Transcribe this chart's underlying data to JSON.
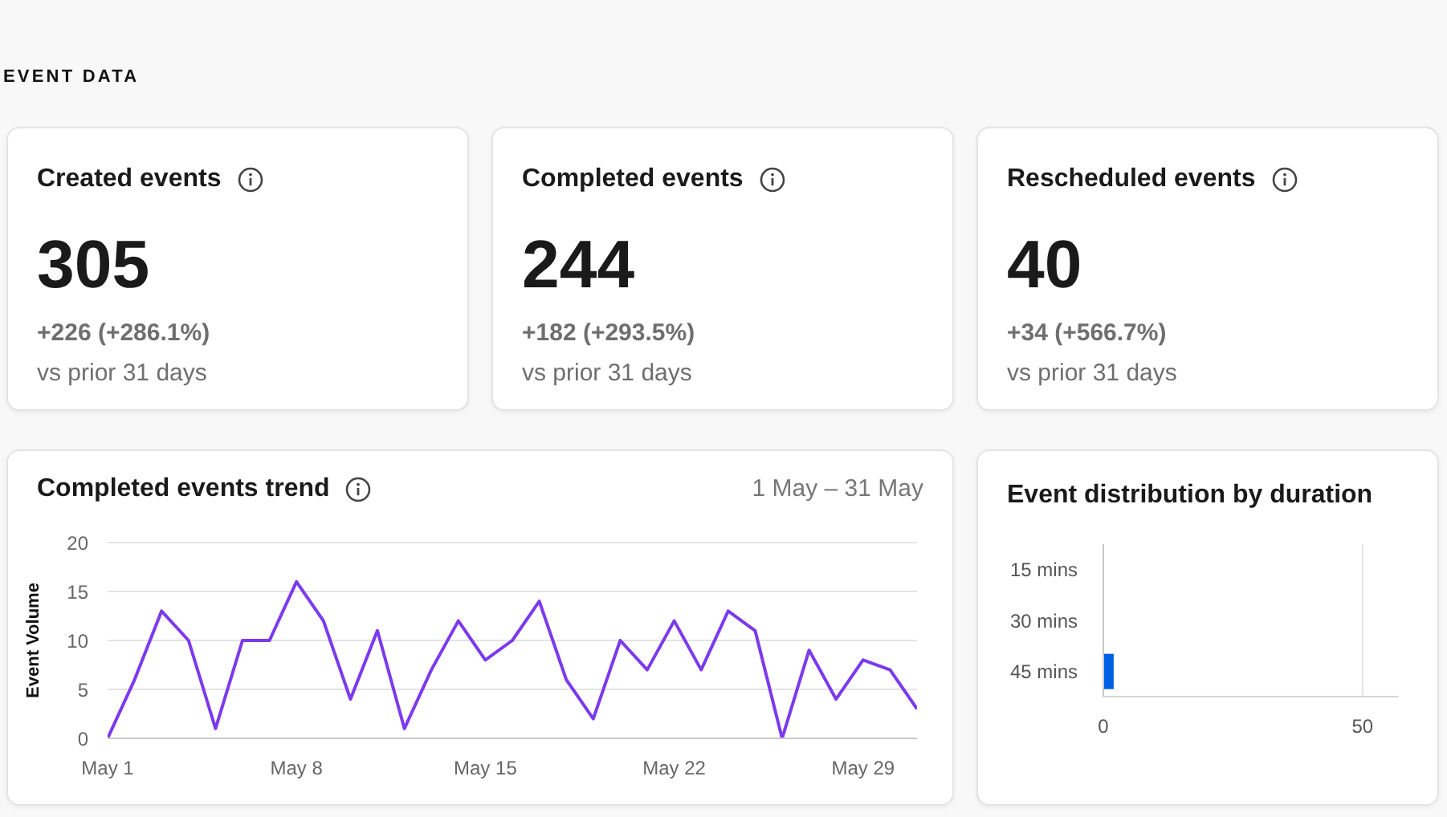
{
  "chart_data": [
    {
      "type": "other",
      "title": "EVENT DATA"
    },
    {
      "type": "other",
      "title": "Created events",
      "annotations": [
        "305",
        "+226 (+286.1%)",
        "vs prior 31 days"
      ]
    },
    {
      "type": "other",
      "title": "Completed events",
      "annotations": [
        "244",
        "+182 (+293.5%)",
        "vs prior 31 days"
      ]
    },
    {
      "type": "other",
      "title": "Rescheduled events",
      "annotations": [
        "40",
        "+34 (+566.7%)",
        "vs prior 31 days"
      ]
    },
    {
      "type": "line",
      "title": "Completed events trend",
      "subtitle": "1 May – 31 May",
      "ylabel": "Event Volume",
      "x": [
        "--05-01",
        "--05-02",
        "--05-03",
        "--05-04",
        "--05-05",
        "--05-06",
        "--05-07",
        "--05-08",
        "--05-09",
        "--05-10",
        "--05-11",
        "--05-12",
        "--05-13",
        "--05-14",
        "--05-15",
        "--05-16",
        "--05-17",
        "--05-18",
        "--05-19",
        "--05-20",
        "--05-21",
        "--05-22",
        "--05-23",
        "--05-24",
        "--05-25",
        "--05-26",
        "--05-27",
        "--05-28",
        "--05-29",
        "--05-30",
        "--05-31"
      ],
      "values": [
        0,
        6,
        13,
        10,
        1,
        10,
        10,
        16,
        12,
        4,
        11,
        1,
        7,
        12,
        8,
        10,
        14,
        6,
        2,
        10,
        7,
        12,
        7,
        13,
        11,
        0,
        9,
        4,
        8,
        7,
        3
      ],
      "color": "#7c3aed",
      "xlim": [
        "--05-01",
        "--05-31"
      ],
      "xticks": [
        {
          "value": "--05-01",
          "label": "May 1"
        },
        {
          "value": "--05-08",
          "label": "May 8"
        },
        {
          "value": "--05-15",
          "label": "May 15"
        },
        {
          "value": "--05-22",
          "label": "May 22"
        },
        {
          "value": "--05-29",
          "label": "May 29"
        }
      ],
      "ylim": [
        0,
        20
      ],
      "yticks": [
        0,
        5,
        10,
        15,
        20
      ],
      "grid": "y"
    },
    {
      "type": "bar",
      "orientation": "horizontal",
      "title": "Event distribution by duration",
      "categories": [
        "15 mins",
        "30 mins",
        "45 mins"
      ],
      "values": [
        null,
        null,
        2
      ],
      "color": "#0060e6",
      "xlim": [
        0,
        57
      ],
      "xticks": [
        0,
        50
      ],
      "grid": "x"
    }
  ]
}
